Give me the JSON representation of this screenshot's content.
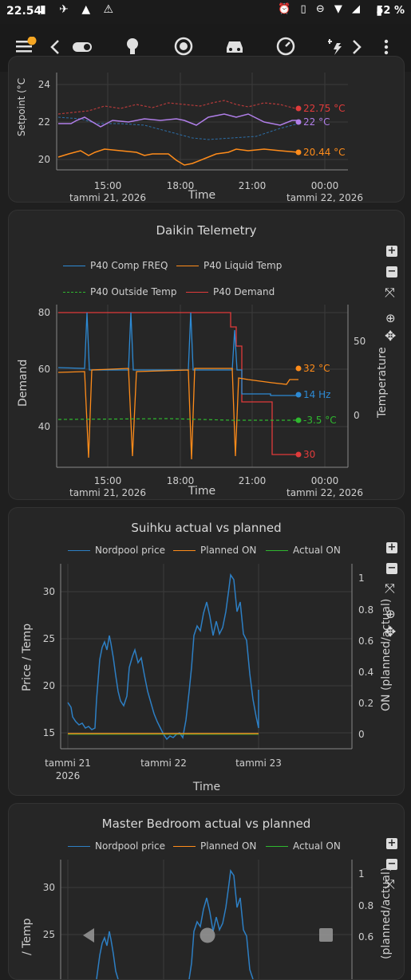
{
  "status": {
    "time": "22.54",
    "battery": "52 %"
  },
  "topbar": {
    "icons": [
      "menu-icon",
      "back-chevron-icon",
      "toggle-icon",
      "bulb-icon",
      "robot-vacuum-icon",
      "car-icon",
      "gauge-icon",
      "weather-icon",
      "forward-chevron-icon",
      "more-vert-icon"
    ],
    "active": "gauge-icon",
    "badge_color": "#f5a623"
  },
  "card1": {
    "ylabel": "Setpoint (°C",
    "xlabel": "Time",
    "yticks": [
      "24",
      "22",
      "20"
    ],
    "xticks": [
      "15:00",
      "18:00",
      "21:00",
      "00:00"
    ],
    "xsub": [
      "tammi 21, 2026",
      "",
      "",
      "tammi 22, 2026"
    ],
    "end_labels": [
      {
        "text": "22.75 °C",
        "color": "#e03b3b"
      },
      {
        "text": "22 °C",
        "color": "#b07ee8"
      },
      {
        "text": "20.44 °C",
        "color": "#ff8c1a"
      }
    ]
  },
  "card2": {
    "title": "Daikin Telemetry",
    "legend": [
      {
        "name": "P40 Comp FREQ",
        "color": "#2d8ad4"
      },
      {
        "name": "P40 Liquid Temp",
        "color": "#ff8c1a"
      },
      {
        "name": "P40 Outside Temp",
        "color": "#2fb82f",
        "dashed": true
      },
      {
        "name": "P40 Demand",
        "color": "#e03b3b"
      }
    ],
    "ylabel": "Demand",
    "y2label": "Temperature",
    "xlabel": "Time",
    "yticks": [
      "80",
      "60",
      "40"
    ],
    "y2ticks": [
      "50",
      "0"
    ],
    "xticks": [
      "15:00",
      "18:00",
      "21:00",
      "00:00"
    ],
    "xsub": [
      "tammi 21, 2026",
      "",
      "",
      "tammi 22, 2026"
    ],
    "end_labels": [
      {
        "text": "32 °C",
        "color": "#ff8c1a"
      },
      {
        "text": "14 Hz",
        "color": "#2d8ad4"
      },
      {
        "text": "-3.5 °C",
        "color": "#2fb82f"
      },
      {
        "text": "30",
        "color": "#e03b3b"
      }
    ]
  },
  "card3": {
    "title": "Suihku actual vs planned",
    "legend": [
      {
        "name": "Nordpool price",
        "color": "#2d7fc4"
      },
      {
        "name": "Planned ON",
        "color": "#ff8c1a"
      },
      {
        "name": "Actual ON",
        "color": "#2fb82f"
      }
    ],
    "ylabel": "Price / Temp",
    "y2label": "ON (planned/actual)",
    "xlabel": "Time",
    "yticks": [
      "30",
      "25",
      "20",
      "15"
    ],
    "y2ticks": [
      "1",
      "0.8",
      "0.6",
      "0.4",
      "0.2",
      "0"
    ],
    "xticks": [
      "tammi 21",
      "tammi 22",
      "tammi 23"
    ],
    "xsub": [
      "2026",
      "",
      ""
    ]
  },
  "card4": {
    "title": "Master Bedroom actual vs planned",
    "legend": [
      {
        "name": "Nordpool price",
        "color": "#2d7fc4"
      },
      {
        "name": "Planned ON",
        "color": "#ff8c1a"
      },
      {
        "name": "Actual ON",
        "color": "#2fb82f"
      }
    ],
    "ylabel": "/ Temp",
    "y2label": "(planned/actual)",
    "yticks": [
      "30",
      "25"
    ],
    "y2ticks": [
      "1",
      "0.8",
      "0.6"
    ]
  }
}
